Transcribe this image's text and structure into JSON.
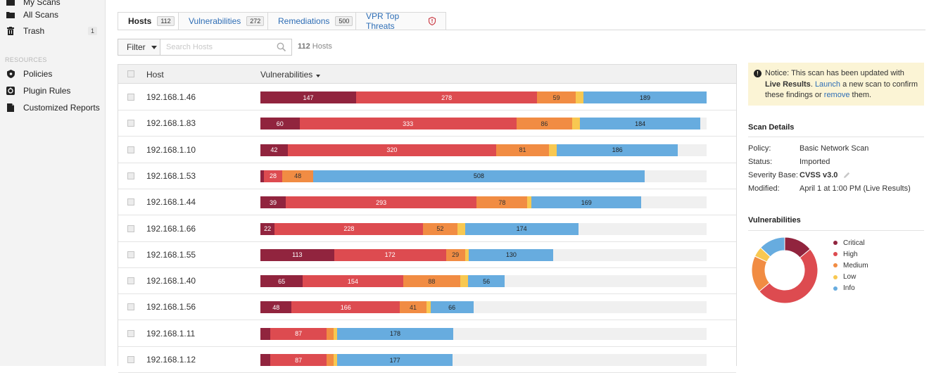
{
  "sidebar": {
    "items": [
      {
        "label": "My Scans",
        "icon": "folder-icon"
      },
      {
        "label": "All Scans",
        "icon": "folder-icon"
      },
      {
        "label": "Trash",
        "icon": "trash-icon",
        "count": "1"
      }
    ],
    "resources_label": "RESOURCES",
    "resources": [
      {
        "label": "Policies",
        "icon": "policy-icon"
      },
      {
        "label": "Plugin Rules",
        "icon": "plugin-rules-icon"
      },
      {
        "label": "Customized Reports",
        "icon": "report-icon"
      }
    ]
  },
  "tabs": [
    {
      "label": "Hosts",
      "count": "112",
      "active": true
    },
    {
      "label": "Vulnerabilities",
      "count": "272"
    },
    {
      "label": "Remediations",
      "count": "500"
    },
    {
      "label": "VPR Top Threats",
      "icon": "shield-icon"
    }
  ],
  "toolbar": {
    "filter_label": "Filter",
    "search_placeholder": "Search Hosts",
    "host_count_number": "112",
    "host_count_suffix": " Hosts"
  },
  "table": {
    "columns": {
      "host": "Host",
      "vulnerabilities": "Vulnerabilities"
    },
    "rows": [
      {
        "host": "192.168.1.46",
        "critical": 147,
        "high": 278,
        "medium": 59,
        "low": 12,
        "info": 189
      },
      {
        "host": "192.168.1.83",
        "critical": 60,
        "high": 333,
        "medium": 86,
        "low": 12,
        "info": 184
      },
      {
        "host": "192.168.1.10",
        "critical": 42,
        "high": 320,
        "medium": 81,
        "low": 12,
        "info": 186
      },
      {
        "host": "192.168.1.53",
        "critical": 5,
        "high": 28,
        "medium": 48,
        "low": 0,
        "info": 508
      },
      {
        "host": "192.168.1.44",
        "critical": 39,
        "high": 293,
        "medium": 78,
        "low": 6,
        "info": 169
      },
      {
        "host": "192.168.1.66",
        "critical": 22,
        "high": 228,
        "medium": 52,
        "low": 12,
        "info": 174
      },
      {
        "host": "192.168.1.55",
        "critical": 113,
        "high": 172,
        "medium": 29,
        "low": 6,
        "info": 130
      },
      {
        "host": "192.168.1.40",
        "critical": 65,
        "high": 154,
        "medium": 88,
        "low": 12,
        "info": 56
      },
      {
        "host": "192.168.1.56",
        "critical": 48,
        "high": 166,
        "medium": 41,
        "low": 6,
        "info": 66
      },
      {
        "host": "192.168.1.11",
        "critical": 15,
        "high": 87,
        "medium": 10,
        "low": 6,
        "info": 178
      },
      {
        "host": "192.168.1.12",
        "critical": 15,
        "high": 87,
        "medium": 10,
        "low": 6,
        "info": 177
      }
    ],
    "scale_max": 685
  },
  "notice": {
    "prefix": "Notice: This scan has been updated with ",
    "bold": "Live Results",
    "mid": ". ",
    "link1": "Launch",
    "mid2": " a new scan to confirm these findings or ",
    "link2": "remove",
    "suffix": " them."
  },
  "scan_details": {
    "title": "Scan Details",
    "rows": [
      {
        "key": "Policy:",
        "value": "Basic Network Scan"
      },
      {
        "key": "Status:",
        "value": "Imported"
      },
      {
        "key": "Severity Base:",
        "value": "CVSS v3.0"
      },
      {
        "key": "Modified:",
        "value": "April 1 at 1:00 PM (Live Results)"
      }
    ]
  },
  "vuln_summary": {
    "title": "Vulnerabilities",
    "legend": [
      "Critical",
      "High",
      "Medium",
      "Low",
      "Info"
    ],
    "share": [
      0.14,
      0.5,
      0.18,
      0.05,
      0.13
    ]
  },
  "colors": {
    "critical": "#91243e",
    "high": "#dd4b50",
    "medium": "#f18c43",
    "low": "#f8c851",
    "info": "#67acdf",
    "link": "#2d6db5"
  }
}
